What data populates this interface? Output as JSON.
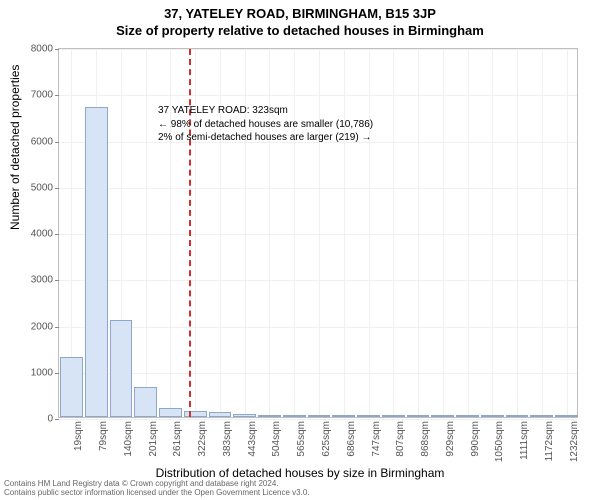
{
  "title_line1": "37, YATELEY ROAD, BIRMINGHAM, B15 3JP",
  "title_line2": "Size of property relative to detached houses in Birmingham",
  "y_label": "Number of detached properties",
  "x_label": "Distribution of detached houses by size in Birmingham",
  "annotation": {
    "line1": "37 YATELEY ROAD: 323sqm",
    "line2": "← 98% of detached houses are smaller (10,786)",
    "line3": "2% of semi-detached houses are larger (219) →"
  },
  "footer": {
    "line1": "Contains HM Land Registry data © Crown copyright and database right 2024.",
    "line2": "Contains public sector information licensed under the Open Government Licence v3.0."
  },
  "chart": {
    "type": "histogram",
    "ylim": [
      0,
      8000
    ],
    "ytick_step": 1000,
    "y_ticks": [
      0,
      1000,
      2000,
      3000,
      4000,
      5000,
      6000,
      7000,
      8000
    ],
    "x_categories": [
      "19sqm",
      "79sqm",
      "140sqm",
      "201sqm",
      "261sqm",
      "322sqm",
      "383sqm",
      "443sqm",
      "504sqm",
      "565sqm",
      "625sqm",
      "686sqm",
      "747sqm",
      "807sqm",
      "868sqm",
      "929sqm",
      "990sqm",
      "1050sqm",
      "1111sqm",
      "1172sqm",
      "1232sqm"
    ],
    "bar_values": [
      1300,
      6700,
      2100,
      650,
      200,
      130,
      100,
      60,
      40,
      35,
      30,
      20,
      15,
      10,
      10,
      8,
      6,
      5,
      4,
      3,
      2
    ],
    "reference_value_sqm": 323,
    "bar_fill": "#d6e4f5",
    "bar_border": "#8fa8c7",
    "ref_line_color": "#d03030",
    "grid_color": "#f0f0f0",
    "axis_color": "#bfbfbf",
    "background": "#ffffff",
    "label_fontsize": 12,
    "tick_fontsize": 10,
    "title_fontsize": 13,
    "annotation_fontsize": 10
  }
}
